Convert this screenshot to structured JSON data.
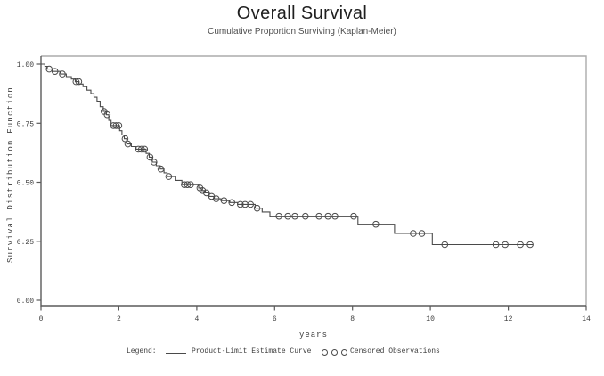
{
  "header": {
    "title": "Overall Survival",
    "subtitle": "Cumulative Proportion Surviving (Kaplan-Meier)"
  },
  "chart_data": {
    "type": "line",
    "subtype": "kaplan_meier_step",
    "title": "Overall Survival",
    "subtitle": "Cumulative Proportion Surviving (Kaplan-Meier)",
    "xlabel": "years",
    "ylabel": "Survival Distribution Function",
    "xlim": [
      0,
      14
    ],
    "ylim": [
      0.0,
      1.0
    ],
    "grid": false,
    "legend_position": "bottom",
    "x_ticks": [
      {
        "value": 0,
        "label": "0"
      },
      {
        "value": 2,
        "label": "2"
      },
      {
        "value": 4,
        "label": "4"
      },
      {
        "value": 6,
        "label": "6"
      },
      {
        "value": 8,
        "label": "8"
      },
      {
        "value": 10,
        "label": "10"
      },
      {
        "value": 12,
        "label": "12"
      },
      {
        "value": 14,
        "label": "14"
      }
    ],
    "y_ticks": [
      {
        "value": 1.0,
        "label": "1.00"
      },
      {
        "value": 0.75,
        "label": "0.75"
      },
      {
        "value": 0.5,
        "label": "0.50"
      },
      {
        "value": 0.25,
        "label": "0.25"
      },
      {
        "value": 0.0,
        "label": "0.00"
      }
    ],
    "series": [
      {
        "name": "Product-Limit Estimate Curve",
        "type": "step",
        "end_time": 12.63,
        "points": [
          [
            0.0,
            1.0
          ],
          [
            0.1,
            0.99
          ],
          [
            0.16,
            0.979
          ],
          [
            0.3,
            0.969
          ],
          [
            0.5,
            0.958
          ],
          [
            0.65,
            0.947
          ],
          [
            0.78,
            0.937
          ],
          [
            0.88,
            0.926
          ],
          [
            0.98,
            0.916
          ],
          [
            1.08,
            0.905
          ],
          [
            1.18,
            0.89
          ],
          [
            1.28,
            0.875
          ],
          [
            1.36,
            0.86
          ],
          [
            1.44,
            0.843
          ],
          [
            1.52,
            0.82
          ],
          [
            1.6,
            0.8
          ],
          [
            1.68,
            0.786
          ],
          [
            1.74,
            0.762
          ],
          [
            1.8,
            0.74
          ],
          [
            2.02,
            0.718
          ],
          [
            2.08,
            0.7
          ],
          [
            2.14,
            0.684
          ],
          [
            2.2,
            0.662
          ],
          [
            2.32,
            0.651
          ],
          [
            2.44,
            0.64
          ],
          [
            2.7,
            0.622
          ],
          [
            2.78,
            0.606
          ],
          [
            2.86,
            0.585
          ],
          [
            2.96,
            0.57
          ],
          [
            3.06,
            0.556
          ],
          [
            3.16,
            0.54
          ],
          [
            3.24,
            0.524
          ],
          [
            3.46,
            0.508
          ],
          [
            3.62,
            0.49
          ],
          [
            4.05,
            0.476
          ],
          [
            4.12,
            0.465
          ],
          [
            4.21,
            0.455
          ],
          [
            4.32,
            0.44
          ],
          [
            4.45,
            0.43
          ],
          [
            4.62,
            0.422
          ],
          [
            4.85,
            0.414
          ],
          [
            5.05,
            0.406
          ],
          [
            5.5,
            0.39
          ],
          [
            5.68,
            0.374
          ],
          [
            5.88,
            0.356
          ],
          [
            8.14,
            0.322
          ],
          [
            9.08,
            0.283
          ],
          [
            10.05,
            0.236
          ]
        ]
      },
      {
        "name": "Censored Observations",
        "type": "censored_markers",
        "times": [
          0.21,
          0.36,
          0.55,
          0.9,
          0.97,
          1.62,
          1.7,
          1.86,
          1.93,
          2.0,
          2.16,
          2.23,
          2.5,
          2.58,
          2.66,
          2.8,
          2.9,
          3.08,
          3.28,
          3.68,
          3.76,
          3.84,
          4.08,
          4.15,
          4.25,
          4.38,
          4.5,
          4.7,
          4.9,
          5.12,
          5.24,
          5.38,
          5.55,
          6.11,
          6.34,
          6.52,
          6.79,
          7.14,
          7.37,
          7.55,
          8.03,
          8.6,
          9.56,
          9.78,
          10.37,
          11.68,
          11.92,
          12.31,
          12.56
        ]
      }
    ]
  },
  "legend": {
    "prefix": "Legend:",
    "items": [
      {
        "label": "Product-Limit Estimate Curve",
        "marker": "line"
      },
      {
        "label": "Censored Observations",
        "marker": "circles"
      }
    ]
  },
  "colors": {
    "curve": "#4a4a4a",
    "axis": "#5a5a5a",
    "frame": "#ababab",
    "text": "#3c3c3c",
    "title": "#1f1f1f",
    "background": "#ffffff"
  }
}
